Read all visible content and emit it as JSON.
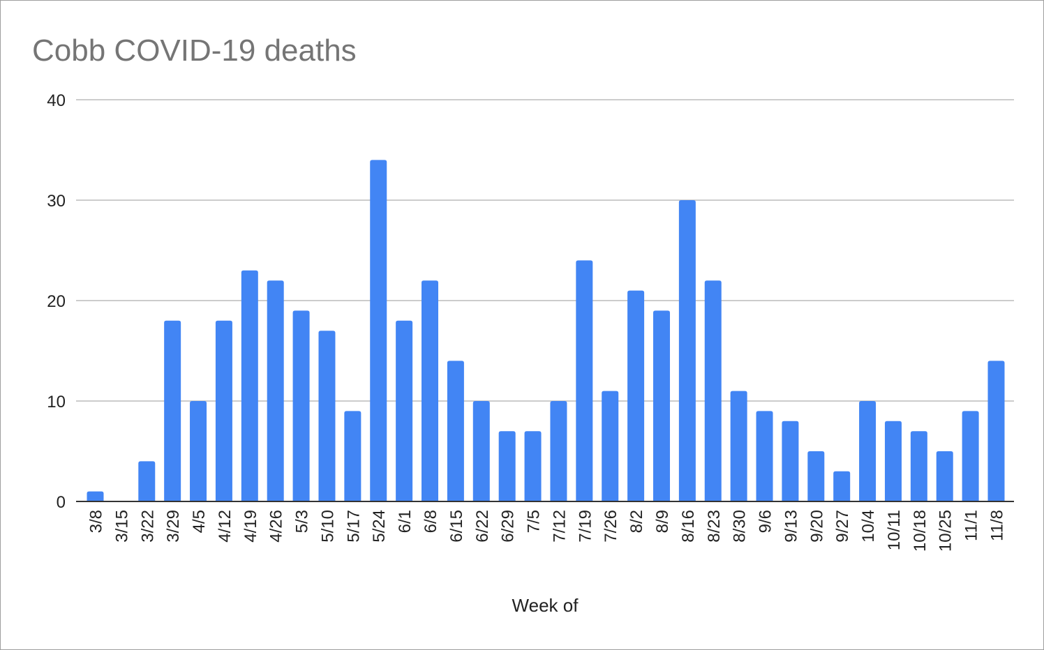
{
  "chart_data": {
    "type": "bar",
    "title": "Cobb COVID-19 deaths",
    "xlabel": "Week of",
    "ylabel": "",
    "ylim": [
      0,
      40
    ],
    "yticks": [
      0,
      10,
      20,
      30,
      40
    ],
    "grid": true,
    "legend": "none",
    "bar_color": "#4285f4",
    "categories": [
      "3/8",
      "3/15",
      "3/22",
      "3/29",
      "4/5",
      "4/12",
      "4/19",
      "4/26",
      "5/3",
      "5/10",
      "5/17",
      "5/24",
      "6/1",
      "6/8",
      "6/15",
      "6/22",
      "6/29",
      "7/5",
      "7/12",
      "7/19",
      "7/26",
      "8/2",
      "8/9",
      "8/16",
      "8/23",
      "8/30",
      "9/6",
      "9/13",
      "9/20",
      "9/27",
      "10/4",
      "10/11",
      "10/18",
      "10/25",
      "11/1",
      "11/8"
    ],
    "values": [
      1,
      0,
      4,
      18,
      10,
      18,
      23,
      22,
      19,
      17,
      9,
      34,
      18,
      22,
      14,
      10,
      7,
      7,
      10,
      24,
      11,
      21,
      19,
      30,
      22,
      11,
      9,
      8,
      5,
      3,
      10,
      8,
      7,
      5,
      9,
      14
    ]
  }
}
